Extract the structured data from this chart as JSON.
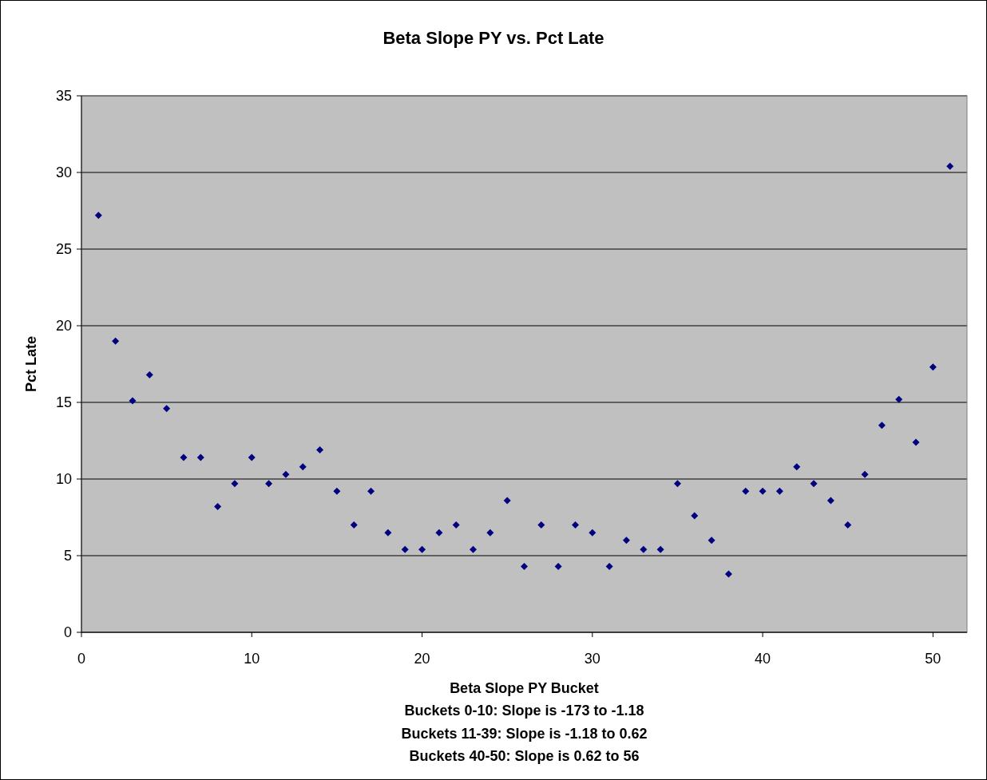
{
  "chart_data": {
    "type": "scatter",
    "title": "Beta Slope PY vs. Pct Late",
    "xlabel": "Beta Slope PY Bucket",
    "ylabel": "Pct Late",
    "annotations": [
      "Buckets 0-10: Slope is -173 to -1.18",
      "Buckets 11-39: Slope is -1.18 to 0.62",
      "Buckets 40-50: Slope is 0.62 to 56"
    ],
    "x": [
      1,
      2,
      3,
      4,
      5,
      6,
      7,
      8,
      9,
      10,
      11,
      12,
      13,
      14,
      15,
      16,
      17,
      18,
      19,
      20,
      21,
      22,
      23,
      24,
      25,
      26,
      27,
      28,
      29,
      30,
      31,
      32,
      33,
      34,
      35,
      36,
      37,
      38,
      39,
      40,
      41,
      42,
      43,
      44,
      45,
      46,
      47,
      48,
      49,
      50,
      51
    ],
    "series": [
      {
        "color": "#000080",
        "values": [
          27.2,
          19.0,
          15.1,
          16.8,
          14.6,
          11.4,
          11.4,
          8.2,
          9.7,
          11.4,
          9.7,
          10.3,
          10.8,
          11.9,
          9.2,
          7.0,
          9.2,
          6.5,
          5.4,
          5.4,
          6.5,
          7.0,
          5.4,
          6.5,
          8.6,
          4.3,
          7.0,
          4.3,
          7.0,
          6.5,
          4.3,
          6.0,
          5.4,
          5.4,
          9.7,
          7.6,
          6.0,
          3.8,
          9.2,
          9.2,
          9.2,
          10.8,
          9.7,
          8.6,
          7.0,
          10.3,
          13.5,
          15.2,
          12.4,
          17.3,
          30.4
        ]
      }
    ],
    "xlim": [
      0,
      52
    ],
    "xticks": [
      0,
      10,
      20,
      30,
      40,
      50
    ],
    "ylim": [
      0,
      35
    ],
    "yticks": [
      0,
      5,
      10,
      15,
      20,
      25,
      30,
      35
    ],
    "grid": "y",
    "marker": "diamond"
  }
}
